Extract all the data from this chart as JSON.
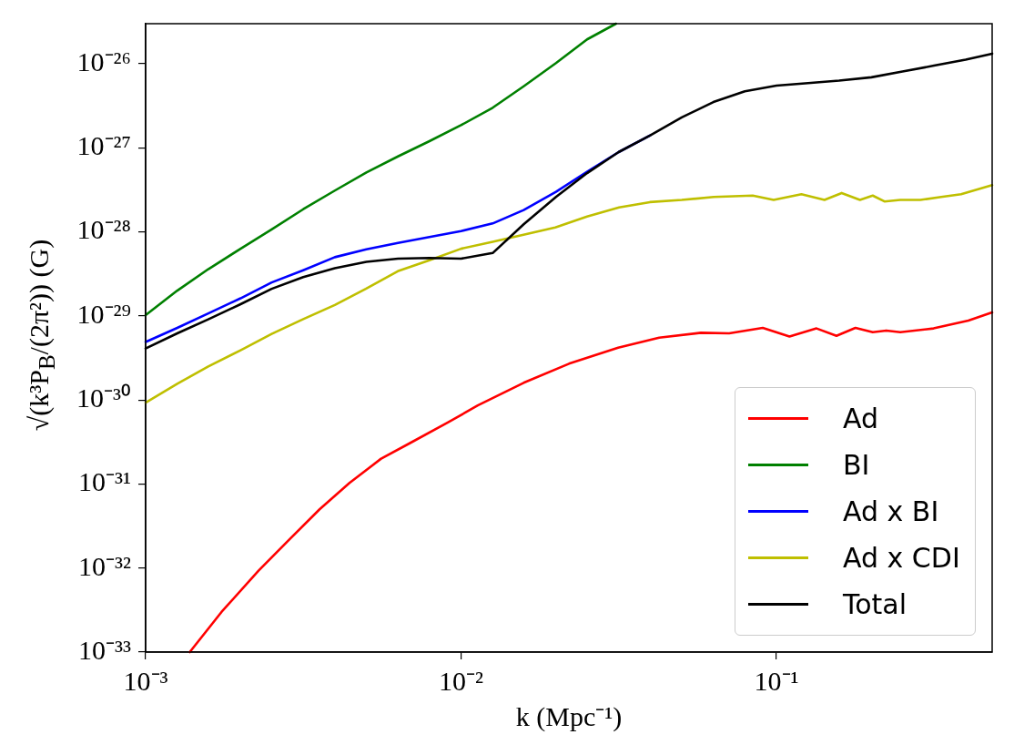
{
  "chart_data": {
    "type": "line",
    "xlabel": "k (Mpc⁻¹)",
    "ylabel": "√(k³P$_{B}$/(2π²)) (G)",
    "log": "xy",
    "grid": false,
    "legend": "bottom right",
    "marker": "none",
    "line_style": "solid",
    "xlim": [
      0.001,
      0.483
    ],
    "ylim": [
      1e-33,
      3e-26
    ],
    "xticks": [
      {
        "value": 0.001,
        "label": "10⁻³"
      },
      {
        "value": 0.01,
        "label": "10⁻²"
      },
      {
        "value": 0.1,
        "label": "10⁻¹"
      }
    ],
    "yticks": [
      {
        "value": 1e-33,
        "label": "10⁻³³"
      },
      {
        "value": 1e-32,
        "label": "10⁻³²"
      },
      {
        "value": 1e-31,
        "label": "10⁻³¹"
      },
      {
        "value": 1e-30,
        "label": "10⁻³⁰"
      },
      {
        "value": 1e-29,
        "label": "10⁻²⁹"
      },
      {
        "value": 1e-28,
        "label": "10⁻²⁸"
      },
      {
        "value": 1e-27,
        "label": "10⁻²⁷"
      },
      {
        "value": 1e-26,
        "label": "10⁻²⁶"
      }
    ],
    "series": [
      {
        "name": "Ad",
        "color": "#ff0000",
        "x": [
          0.00138,
          0.00174,
          0.00228,
          0.00286,
          0.00356,
          0.00443,
          0.00558,
          0.00687,
          0.00908,
          0.0113,
          0.0158,
          0.022,
          0.0315,
          0.0425,
          0.0576,
          0.0708,
          0.0905,
          0.11,
          0.134,
          0.155,
          0.178,
          0.202,
          0.223,
          0.247,
          0.315,
          0.406,
          0.483
        ],
        "values": [
          1e-33,
          3e-33,
          9.3e-33,
          2.2e-32,
          5e-32,
          1.03e-31,
          2e-31,
          3.05e-31,
          5.4e-31,
          8.6e-31,
          1.6e-30,
          2.7e-30,
          4.2e-30,
          5.5e-30,
          6.3e-30,
          6.2e-30,
          7.2e-30,
          5.7e-30,
          7.1e-30,
          5.8e-30,
          7.2e-30,
          6.4e-30,
          6.7e-30,
          6.4e-30,
          7.1e-30,
          8.8e-30,
          1.1e-29
        ]
      },
      {
        "name": "BI",
        "color": "#008000",
        "x": [
          0.001,
          0.00126,
          0.00158,
          0.002,
          0.00251,
          0.00316,
          0.00398,
          0.00501,
          0.00631,
          0.00794,
          0.01,
          0.0126,
          0.0158,
          0.02,
          0.0251,
          0.031
        ],
        "values": [
          1.02e-29,
          2e-29,
          3.6e-29,
          6.3e-29,
          1.07e-28,
          1.86e-28,
          3.1e-28,
          5.1e-28,
          7.9e-28,
          1.2e-27,
          1.86e-27,
          3e-27,
          5.4e-27,
          1.02e-26,
          1.95e-26,
          3e-26
        ]
      },
      {
        "name": "Ad x BI",
        "color": "#0000ff",
        "x": [
          0.001,
          0.00126,
          0.00158,
          0.002,
          0.00251,
          0.00316,
          0.00398,
          0.00501,
          0.00631,
          0.00794,
          0.01,
          0.0126,
          0.0158,
          0.02,
          0.0251,
          0.0316,
          0.0398
        ],
        "values": [
          4.9e-30,
          7.2e-30,
          1.07e-29,
          1.62e-29,
          2.5e-29,
          3.5e-29,
          5e-29,
          6.2e-29,
          7.4e-29,
          8.7e-29,
          1.02e-28,
          1.26e-28,
          1.82e-28,
          3e-28,
          5.2e-28,
          8.9e-28,
          1.41e-27
        ]
      },
      {
        "name": "Ad x CDI",
        "color": "#bfbf00",
        "x": [
          0.001,
          0.00126,
          0.00158,
          0.002,
          0.00251,
          0.00315,
          0.00398,
          0.00499,
          0.0063,
          0.00794,
          0.01,
          0.0126,
          0.0159,
          0.0199,
          0.0251,
          0.0317,
          0.0397,
          0.0501,
          0.0633,
          0.0841,
          0.098,
          0.12,
          0.142,
          0.161,
          0.184,
          0.202,
          0.22,
          0.247,
          0.286,
          0.333,
          0.385,
          0.483
        ],
        "values": [
          9.3e-31,
          1.56e-30,
          2.5e-30,
          3.9e-30,
          6.1e-30,
          9.1e-30,
          1.35e-29,
          2.1e-29,
          3.4e-29,
          4.6e-29,
          6.3e-29,
          7.6e-29,
          9.3e-29,
          1.13e-28,
          1.52e-28,
          1.95e-28,
          2.26e-28,
          2.4e-28,
          2.6e-28,
          2.7e-28,
          2.4e-28,
          2.8e-28,
          2.4e-28,
          2.9e-28,
          2.4e-28,
          2.7e-28,
          2.3e-28,
          2.4e-28,
          2.4e-28,
          2.6e-28,
          2.8e-28,
          3.6e-28
        ]
      },
      {
        "name": "Total",
        "color": "#000000",
        "x": [
          0.001,
          0.00126,
          0.00158,
          0.002,
          0.00251,
          0.00316,
          0.00398,
          0.00501,
          0.00631,
          0.00794,
          0.01,
          0.0126,
          0.0158,
          0.02,
          0.0251,
          0.0316,
          0.0398,
          0.0501,
          0.0631,
          0.0794,
          0.1,
          0.126,
          0.158,
          0.2,
          0.251,
          0.316,
          0.398,
          0.483
        ],
        "values": [
          4.1e-30,
          6.2e-30,
          9.1e-30,
          1.38e-29,
          2.1e-29,
          2.9e-29,
          3.7e-29,
          4.4e-29,
          4.8e-29,
          4.9e-29,
          4.8e-29,
          5.6e-29,
          1.23e-28,
          2.6e-28,
          5e-28,
          8.9e-28,
          1.41e-27,
          2.3e-27,
          3.5e-27,
          4.7e-27,
          5.5e-27,
          5.9e-27,
          6.3e-27,
          6.9e-27,
          8.1e-27,
          9.5e-27,
          1.12e-26,
          1.32e-26
        ]
      }
    ]
  }
}
